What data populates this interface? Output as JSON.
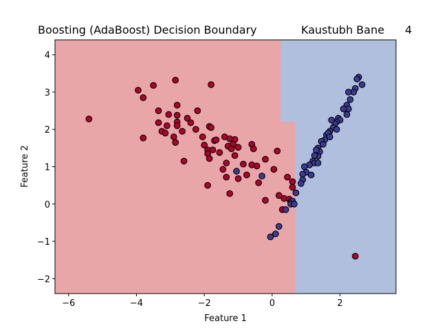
{
  "chart_data": {
    "type": "scatter",
    "title": "Boosting (AdaBoost) Decision Boundary",
    "title_right": "Kaustubh Bane",
    "title_number": "4",
    "xlabel": "Feature 1",
    "ylabel": "Feature 2",
    "xlim": [
      -6.4,
      3.65
    ],
    "ylim": [
      -2.4,
      4.4
    ],
    "xticks": [
      -6,
      -4,
      -2,
      0,
      2
    ],
    "yticks": [
      -2,
      -1,
      0,
      1,
      2,
      3,
      4
    ],
    "grid": false,
    "colors": {
      "class0_region": "#e8a6a9",
      "class1_region": "#b0bfde",
      "class0_point": "#b2002a",
      "class1_point": "#3a3b93",
      "edge": "#000000"
    },
    "decision_boundary": [
      [
        0.25,
        4.4
      ],
      [
        0.25,
        2.2
      ],
      [
        0.68,
        2.2
      ],
      [
        0.68,
        -2.4
      ]
    ],
    "series": [
      {
        "class": 0,
        "points": [
          [
            -5.4,
            2.28
          ],
          [
            -3.95,
            3.05
          ],
          [
            -3.8,
            2.85
          ],
          [
            -3.5,
            3.18
          ],
          [
            -2.85,
            3.32
          ],
          [
            -1.8,
            3.2
          ],
          [
            -2.8,
            2.65
          ],
          [
            -3.35,
            2.5
          ],
          [
            -2.2,
            2.5
          ],
          [
            -3.05,
            2.4
          ],
          [
            -2.8,
            2.38
          ],
          [
            -2.5,
            2.3
          ],
          [
            -3.35,
            2.18
          ],
          [
            -2.8,
            2.2
          ],
          [
            -2.4,
            2.18
          ],
          [
            -3.1,
            2.1
          ],
          [
            -2.8,
            2.1
          ],
          [
            -3.25,
            1.95
          ],
          [
            -3.15,
            1.9
          ],
          [
            -2.65,
            1.95
          ],
          [
            -2.25,
            2.0
          ],
          [
            -1.85,
            2.08
          ],
          [
            -1.8,
            2.05
          ],
          [
            -3.8,
            1.77
          ],
          [
            -2.9,
            1.8
          ],
          [
            -2.85,
            1.65
          ],
          [
            -2.05,
            1.8
          ],
          [
            -1.7,
            1.7
          ],
          [
            -1.65,
            1.72
          ],
          [
            -2.0,
            1.58
          ],
          [
            -1.9,
            1.45
          ],
          [
            -1.75,
            1.45
          ],
          [
            -1.9,
            1.35
          ],
          [
            -1.55,
            1.38
          ],
          [
            -1.4,
            1.8
          ],
          [
            -1.25,
            1.75
          ],
          [
            -1.1,
            1.73
          ],
          [
            -1.15,
            1.6
          ],
          [
            -1.3,
            1.55
          ],
          [
            -1.0,
            1.52
          ],
          [
            -1.2,
            1.48
          ],
          [
            -0.6,
            1.6
          ],
          [
            -0.55,
            1.48
          ],
          [
            -1.1,
            1.3
          ],
          [
            -1.85,
            1.22
          ],
          [
            -2.6,
            1.15
          ],
          [
            -1.35,
            1.1
          ],
          [
            -0.85,
            1.07
          ],
          [
            -0.6,
            1.05
          ],
          [
            -0.45,
            1.02
          ],
          [
            -1.45,
            0.93
          ],
          [
            -0.2,
            1.2
          ],
          [
            0.15,
            1.42
          ],
          [
            0.05,
            0.93
          ],
          [
            -1.35,
            0.72
          ],
          [
            -1.0,
            0.68
          ],
          [
            -0.75,
            0.78
          ],
          [
            -0.4,
            0.57
          ],
          [
            -1.9,
            0.5
          ],
          [
            0.45,
            0.72
          ],
          [
            0.6,
            0.6
          ],
          [
            0.6,
            0.45
          ],
          [
            0.2,
            0.23
          ],
          [
            0.35,
            0.15
          ],
          [
            0.5,
            0.13
          ],
          [
            0.55,
            0.05
          ],
          [
            -1.25,
            0.28
          ],
          [
            -0.2,
            0.1
          ],
          [
            0.3,
            -0.15
          ],
          [
            2.45,
            -1.4
          ]
        ]
      },
      {
        "class": 1,
        "points": [
          [
            2.55,
            3.4
          ],
          [
            2.5,
            3.35
          ],
          [
            2.65,
            3.2
          ],
          [
            2.45,
            3.1
          ],
          [
            2.4,
            3.0
          ],
          [
            2.25,
            3.0
          ],
          [
            2.3,
            2.8
          ],
          [
            2.2,
            2.65
          ],
          [
            2.25,
            2.55
          ],
          [
            2.1,
            2.55
          ],
          [
            2.2,
            2.4
          ],
          [
            1.95,
            2.3
          ],
          [
            2.0,
            2.25
          ],
          [
            1.9,
            2.2
          ],
          [
            1.85,
            2.15
          ],
          [
            1.8,
            2.05
          ],
          [
            1.7,
            1.95
          ],
          [
            1.75,
            2.25
          ],
          [
            1.9,
            2.0
          ],
          [
            1.6,
            1.85
          ],
          [
            1.65,
            1.9
          ],
          [
            1.7,
            1.8
          ],
          [
            1.55,
            1.72
          ],
          [
            1.45,
            1.68
          ],
          [
            1.5,
            1.6
          ],
          [
            1.35,
            1.5
          ],
          [
            1.4,
            1.4
          ],
          [
            1.3,
            1.45
          ],
          [
            1.35,
            1.28
          ],
          [
            1.25,
            1.3
          ],
          [
            1.2,
            1.15
          ],
          [
            1.25,
            1.1
          ],
          [
            1.1,
            1.05
          ],
          [
            1.35,
            1.1
          ],
          [
            0.95,
            1.0
          ],
          [
            1.0,
            0.85
          ],
          [
            1.15,
            0.78
          ],
          [
            0.9,
            0.8
          ],
          [
            0.9,
            0.65
          ],
          [
            0.85,
            0.55
          ],
          [
            0.7,
            0.3
          ],
          [
            0.6,
            0.08
          ],
          [
            0.55,
            0.0
          ],
          [
            0.65,
            0.0
          ],
          [
            0.4,
            -0.15
          ],
          [
            0.2,
            -0.6
          ],
          [
            0.1,
            -0.8
          ],
          [
            -0.05,
            -0.88
          ],
          [
            -1.05,
            0.88
          ],
          [
            -0.3,
            0.75
          ]
        ]
      }
    ]
  }
}
